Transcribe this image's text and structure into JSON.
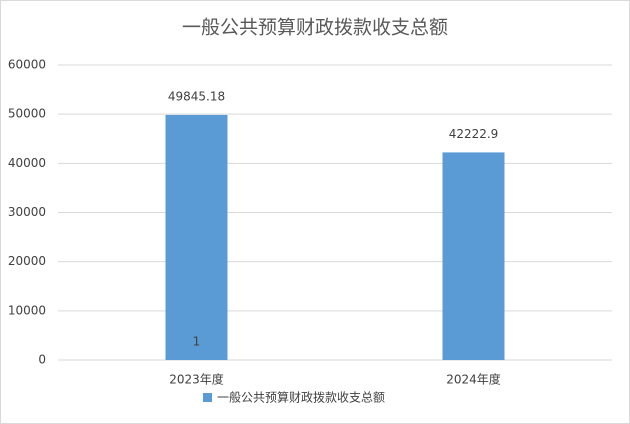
{
  "chart_data": {
    "type": "bar",
    "title": "一般公共预算财政拨款收支总额",
    "categories": [
      "2023年度",
      "2024年度"
    ],
    "series": [
      {
        "name": "一般公共预算财政拨款收支总额",
        "color": "#5b9bd5",
        "values": [
          49845.18,
          42222.9
        ]
      }
    ],
    "ylim": [
      0,
      60000
    ],
    "yticks": [
      0,
      10000,
      20000,
      30000,
      40000,
      50000,
      60000
    ],
    "grid": true,
    "legend": "bottom",
    "annotation": "1"
  }
}
